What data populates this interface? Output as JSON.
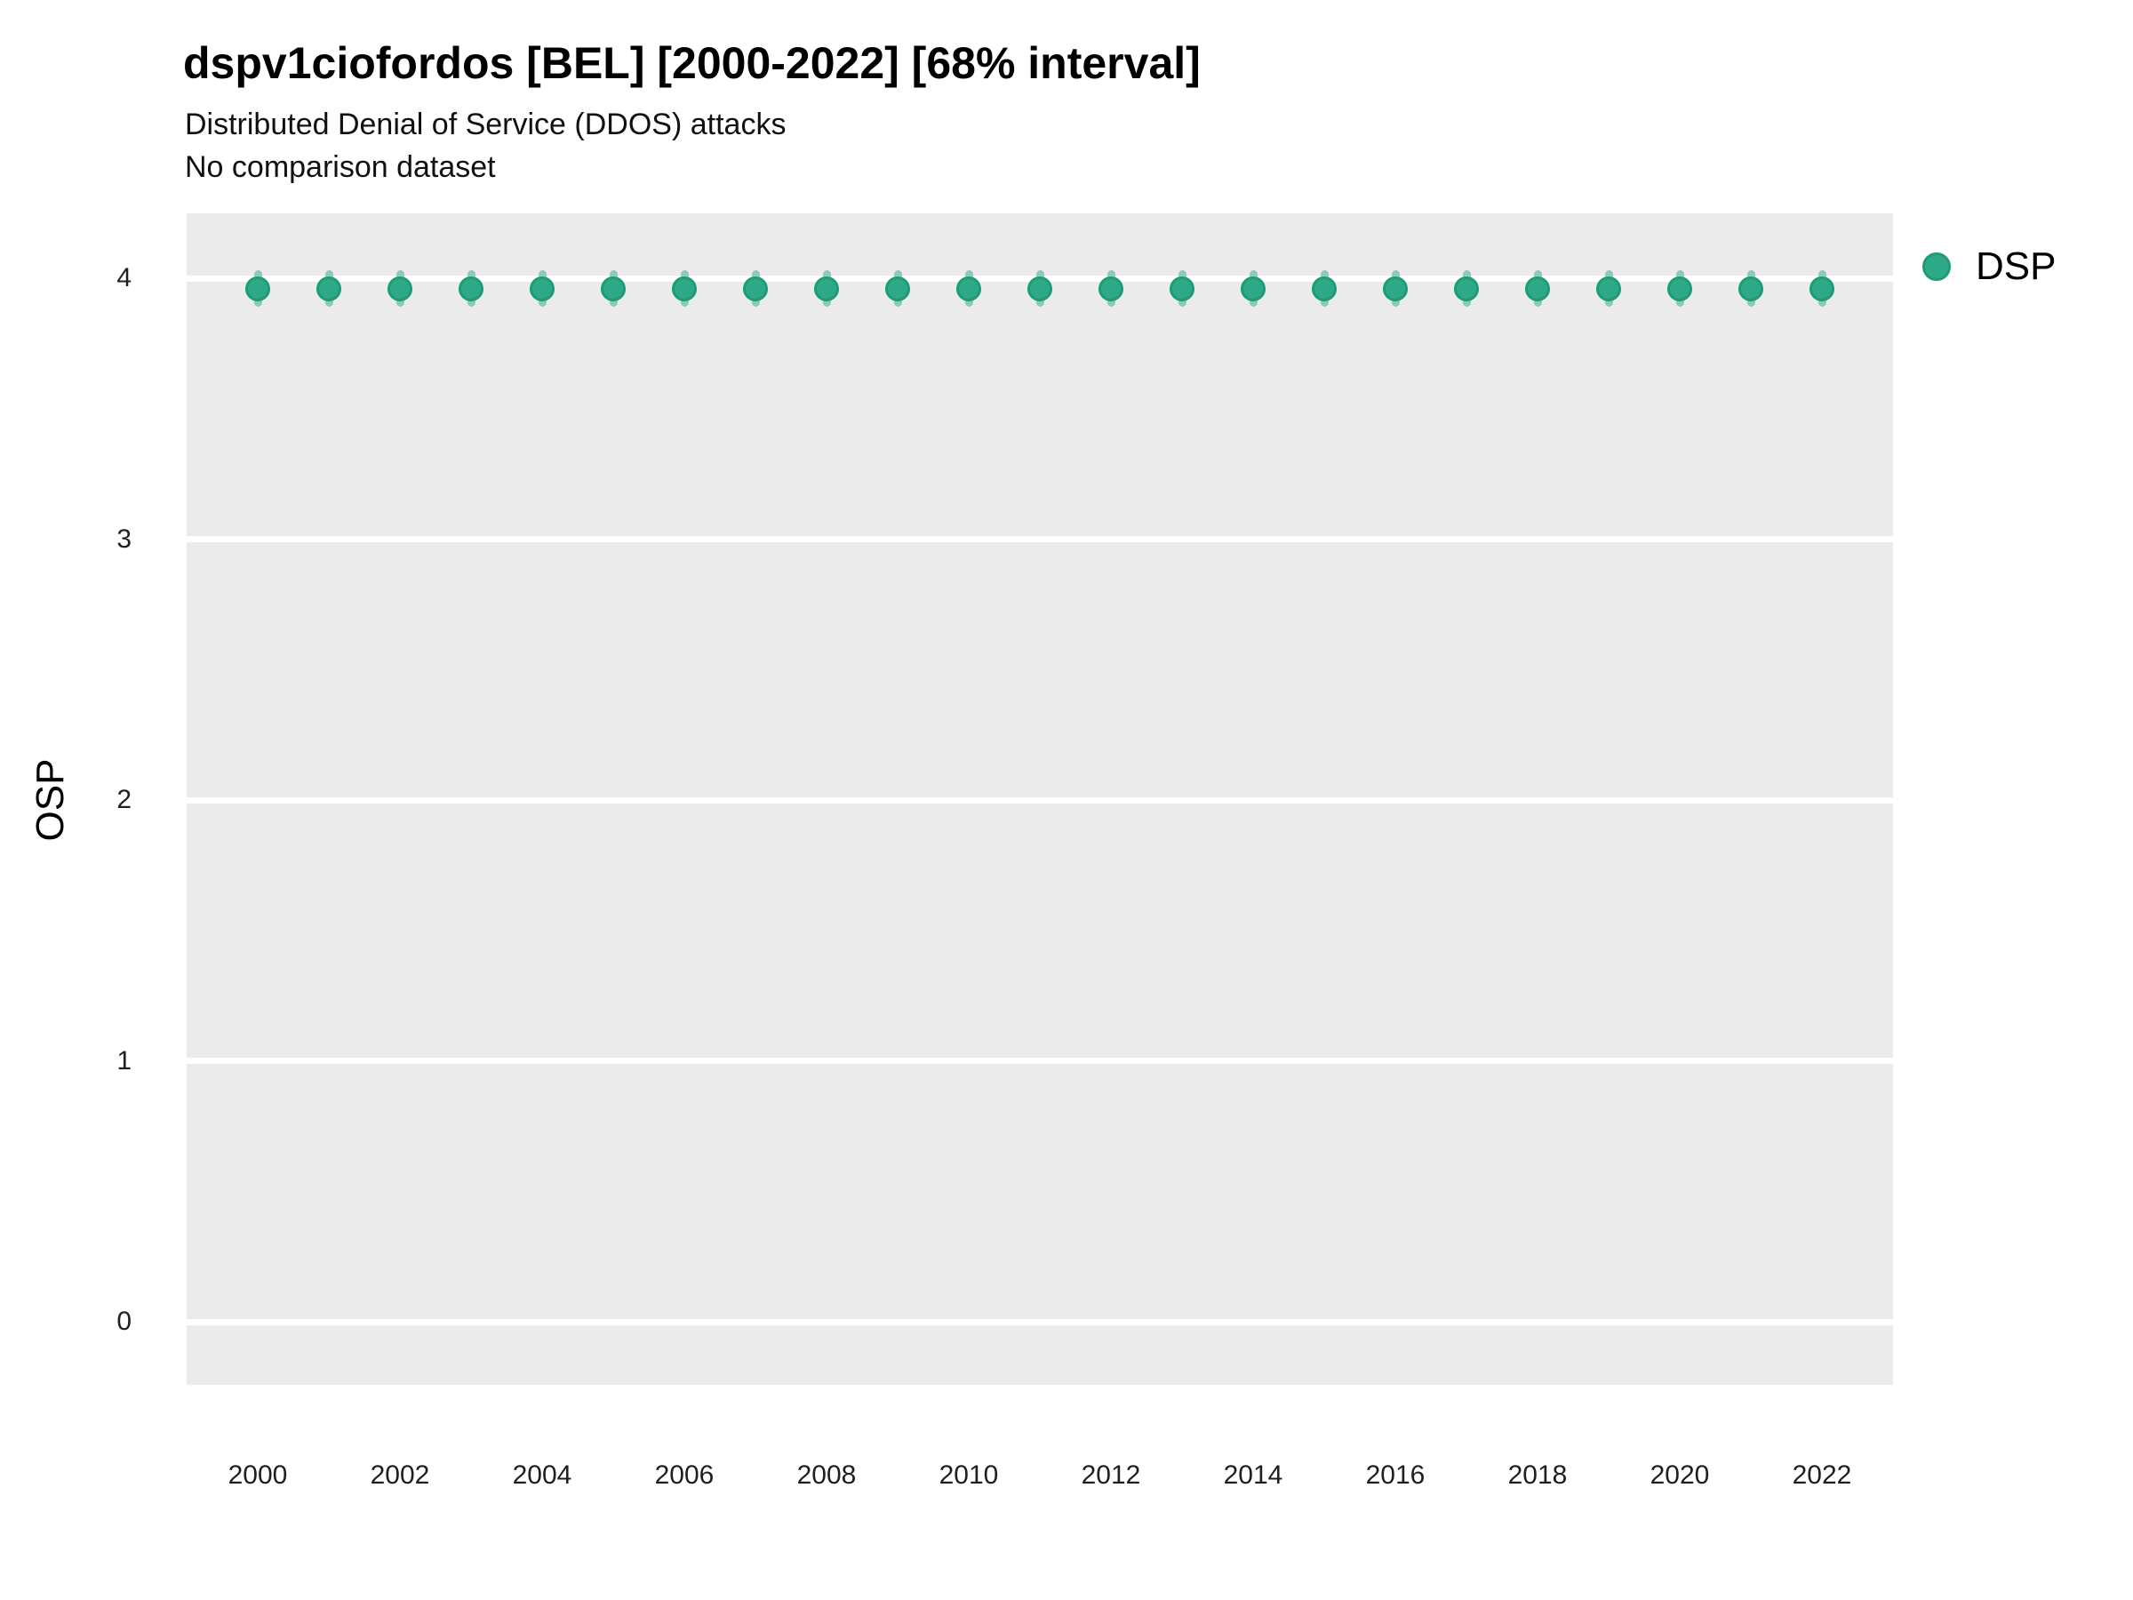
{
  "chart_data": {
    "type": "scatter",
    "title": "dspv1ciofordos [BEL] [2000-2022] [68% interval]",
    "subtitle": "Distributed Denial of Service (DDOS) attacks",
    "note": "No comparison dataset",
    "xlabel": "",
    "ylabel": "OSP",
    "legend_position": "right",
    "x": [
      2000,
      2001,
      2002,
      2003,
      2004,
      2005,
      2006,
      2007,
      2008,
      2009,
      2010,
      2011,
      2012,
      2013,
      2014,
      2015,
      2016,
      2017,
      2018,
      2019,
      2020,
      2021,
      2022
    ],
    "series": [
      {
        "name": "DSP",
        "values": [
          3.96,
          3.96,
          3.96,
          3.96,
          3.96,
          3.96,
          3.96,
          3.96,
          3.96,
          3.96,
          3.96,
          3.96,
          3.96,
          3.96,
          3.96,
          3.96,
          3.96,
          3.96,
          3.96,
          3.96,
          3.96,
          3.96,
          3.96
        ],
        "interval_low": [
          3.89,
          3.89,
          3.89,
          3.89,
          3.89,
          3.89,
          3.89,
          3.89,
          3.89,
          3.89,
          3.89,
          3.89,
          3.89,
          3.89,
          3.89,
          3.89,
          3.89,
          3.89,
          3.89,
          3.89,
          3.89,
          3.89,
          3.89
        ],
        "interval_high": [
          4.03,
          4.03,
          4.03,
          4.03,
          4.03,
          4.03,
          4.03,
          4.03,
          4.03,
          4.03,
          4.03,
          4.03,
          4.03,
          4.03,
          4.03,
          4.03,
          4.03,
          4.03,
          4.03,
          4.03,
          4.03,
          4.03,
          4.03
        ]
      }
    ],
    "xticks": [
      2000,
      2002,
      2004,
      2006,
      2008,
      2010,
      2012,
      2014,
      2016,
      2018,
      2020,
      2022
    ],
    "yticks": [
      4,
      3,
      2,
      1,
      0
    ],
    "xlim": [
      1999,
      2023
    ],
    "ylim": [
      -0.24,
      4.25
    ],
    "grid": "horizontal-major-only",
    "colors": {
      "point_fill": "#2DA986",
      "point_stroke": "#1F9B77",
      "interval_line": "rgba(45,169,134,0.5)",
      "panel_background": "#EBEBEB",
      "gridline": "#FFFFFF"
    }
  }
}
